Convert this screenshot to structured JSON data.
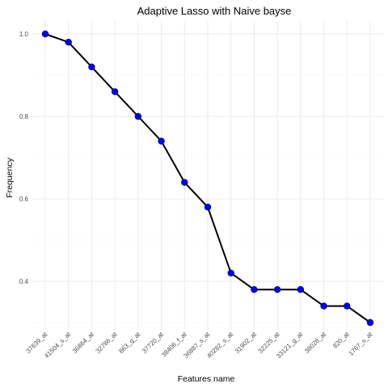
{
  "chart_data": {
    "type": "line",
    "title": "Adaptive Lasso with Naive bayse",
    "xlabel": "Features name",
    "ylabel": "Frequency",
    "categories": [
      "37639_at",
      "41504_s_at",
      "36864_at",
      "32786_at",
      "863_g_at",
      "37720_at",
      "38406_f_at",
      "36887_s_at",
      "40282_s_at",
      "31902_at",
      "32225_at",
      "33121_g_at",
      "38028_at",
      "820_at",
      "1767_s_at"
    ],
    "values": [
      1.0,
      0.98,
      0.92,
      0.86,
      0.8,
      0.74,
      0.64,
      0.58,
      0.42,
      0.38,
      0.38,
      0.38,
      0.34,
      0.34,
      0.3
    ],
    "ylim": [
      0.28,
      1.02
    ],
    "yticks": [
      0.4,
      0.6,
      0.8,
      1.0
    ],
    "ytick_labels": [
      "0.4",
      "0.6",
      "0.8",
      "1.0"
    ],
    "grid": true,
    "colors": {
      "line": "#000000",
      "point": "#0000ff",
      "grid": "#ebebeb"
    }
  }
}
